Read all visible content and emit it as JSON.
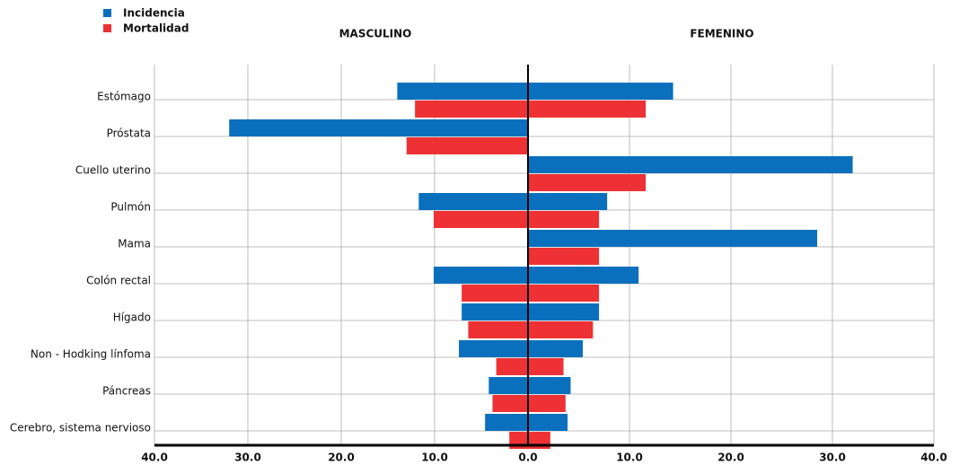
{
  "chart_data": {
    "type": "pyramid",
    "categories": [
      "Estómago",
      "Próstata",
      "Cuello uterino",
      "Pulmón",
      "Mama",
      "Colón rectal",
      "Hígado",
      "Non - Hodking línfoma",
      "Páncreas",
      "Cerebro, sistema nervioso"
    ],
    "sides": [
      {
        "title": "MASCULINO",
        "xlim": [
          40,
          0
        ],
        "xticks": [
          {
            "value": 40,
            "label": "40.0"
          },
          {
            "value": 30,
            "label": "30.0"
          },
          {
            "value": 20,
            "label": "20.0"
          },
          {
            "value": 10,
            "label": "10.0"
          }
        ]
      },
      {
        "title": "FEMENINO",
        "xlim": [
          0,
          40
        ],
        "xticks": [
          {
            "value": 0,
            "label": "0.0"
          },
          {
            "value": 10,
            "label": "10.0"
          },
          {
            "value": 20,
            "label": "20.0"
          },
          {
            "value": 30,
            "label": "30.0"
          },
          {
            "value": 40,
            "label": "40.0"
          }
        ]
      }
    ],
    "series": [
      {
        "name": "Incidencia",
        "color": "#0a70bd",
        "values": [
          [
            14,
            32,
            0,
            11.7,
            0,
            10.1,
            7.1,
            7.4,
            4.2,
            4.6
          ],
          [
            14.3,
            0,
            32,
            7.8,
            28.5,
            10.9,
            7,
            5.4,
            4.2,
            3.9
          ]
        ]
      },
      {
        "name": "Mortalidad",
        "color": "#ee3134",
        "values": [
          [
            12.1,
            13,
            0,
            10.1,
            0,
            7.1,
            6.4,
            3.4,
            3.8,
            2
          ],
          [
            11.6,
            0,
            11.6,
            7,
            7,
            7,
            6.4,
            3.5,
            3.7,
            2.2
          ]
        ]
      }
    ],
    "grid": true
  }
}
